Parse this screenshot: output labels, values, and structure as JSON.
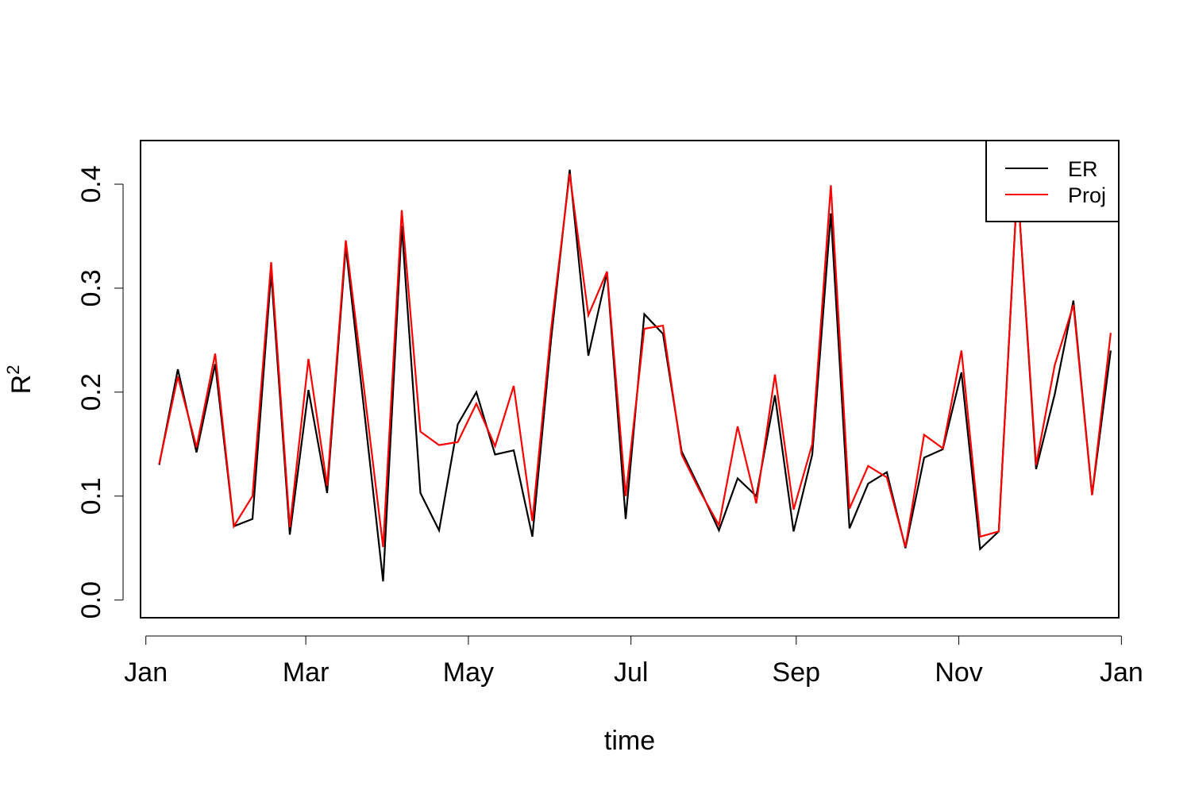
{
  "chart_data": {
    "type": "line",
    "xlabel": "time",
    "ylabel": "R",
    "ylabel_superscript": "2",
    "xlim": [
      "2019-12-30",
      "2020-12-31"
    ],
    "ylim": [
      -0.017,
      0.442
    ],
    "x_ticks": [
      {
        "date": "2020-01-01",
        "label": "Jan"
      },
      {
        "date": "2020-03-01",
        "label": "Mar"
      },
      {
        "date": "2020-05-01",
        "label": "May"
      },
      {
        "date": "2020-07-01",
        "label": "Jul"
      },
      {
        "date": "2020-09-01",
        "label": "Sep"
      },
      {
        "date": "2020-11-01",
        "label": "Nov"
      },
      {
        "date": "2021-01-01",
        "label": "Jan"
      }
    ],
    "y_ticks": [
      {
        "value": 0.0,
        "label": "0.0"
      },
      {
        "value": 0.1,
        "label": "0.1"
      },
      {
        "value": 0.2,
        "label": "0.2"
      },
      {
        "value": 0.3,
        "label": "0.3"
      },
      {
        "value": 0.4,
        "label": "0.4"
      }
    ],
    "legend_position": "top-right",
    "grid": false,
    "x": [
      "2020-01-06",
      "2020-01-13",
      "2020-01-20",
      "2020-01-27",
      "2020-02-03",
      "2020-02-10",
      "2020-02-17",
      "2020-02-24",
      "2020-03-02",
      "2020-03-09",
      "2020-03-16",
      "2020-03-23",
      "2020-03-30",
      "2020-04-06",
      "2020-04-13",
      "2020-04-20",
      "2020-04-27",
      "2020-05-04",
      "2020-05-11",
      "2020-05-18",
      "2020-05-25",
      "2020-06-01",
      "2020-06-08",
      "2020-06-15",
      "2020-06-22",
      "2020-06-29",
      "2020-07-06",
      "2020-07-13",
      "2020-07-20",
      "2020-07-27",
      "2020-08-03",
      "2020-08-10",
      "2020-08-17",
      "2020-08-24",
      "2020-08-31",
      "2020-09-07",
      "2020-09-14",
      "2020-09-21",
      "2020-09-28",
      "2020-10-05",
      "2020-10-12",
      "2020-10-19",
      "2020-10-26",
      "2020-11-02",
      "2020-11-09",
      "2020-11-16",
      "2020-11-23",
      "2020-11-30",
      "2020-12-07",
      "2020-12-14",
      "2020-12-21",
      "2020-12-28"
    ],
    "series": [
      {
        "name": "ER",
        "color": "#000000",
        "values": [
          0.13,
          0.222,
          0.142,
          0.227,
          0.071,
          0.078,
          0.315,
          0.063,
          0.202,
          0.103,
          0.34,
          0.18,
          0.018,
          0.36,
          0.103,
          0.067,
          0.169,
          0.2,
          0.14,
          0.144,
          0.061,
          0.25,
          0.414,
          0.235,
          0.315,
          0.078,
          0.275,
          0.256,
          0.143,
          0.106,
          0.067,
          0.117,
          0.1,
          0.197,
          0.066,
          0.14,
          0.372,
          0.069,
          0.112,
          0.123,
          0.05,
          0.137,
          0.145,
          0.219,
          0.049,
          0.066,
          0.4,
          0.126,
          0.198,
          0.288,
          0.101,
          0.24
        ]
      },
      {
        "name": "Proj",
        "color": "#ff0000",
        "values": [
          0.131,
          0.215,
          0.147,
          0.237,
          0.071,
          0.1,
          0.325,
          0.07,
          0.232,
          0.11,
          0.346,
          0.2,
          0.051,
          0.375,
          0.162,
          0.149,
          0.152,
          0.189,
          0.148,
          0.206,
          0.076,
          0.26,
          0.41,
          0.274,
          0.316,
          0.1,
          0.261,
          0.264,
          0.14,
          0.104,
          0.072,
          0.167,
          0.093,
          0.217,
          0.087,
          0.15,
          0.399,
          0.088,
          0.129,
          0.118,
          0.051,
          0.159,
          0.146,
          0.24,
          0.061,
          0.066,
          0.4,
          0.13,
          0.226,
          0.284,
          0.101,
          0.257
        ]
      }
    ]
  }
}
